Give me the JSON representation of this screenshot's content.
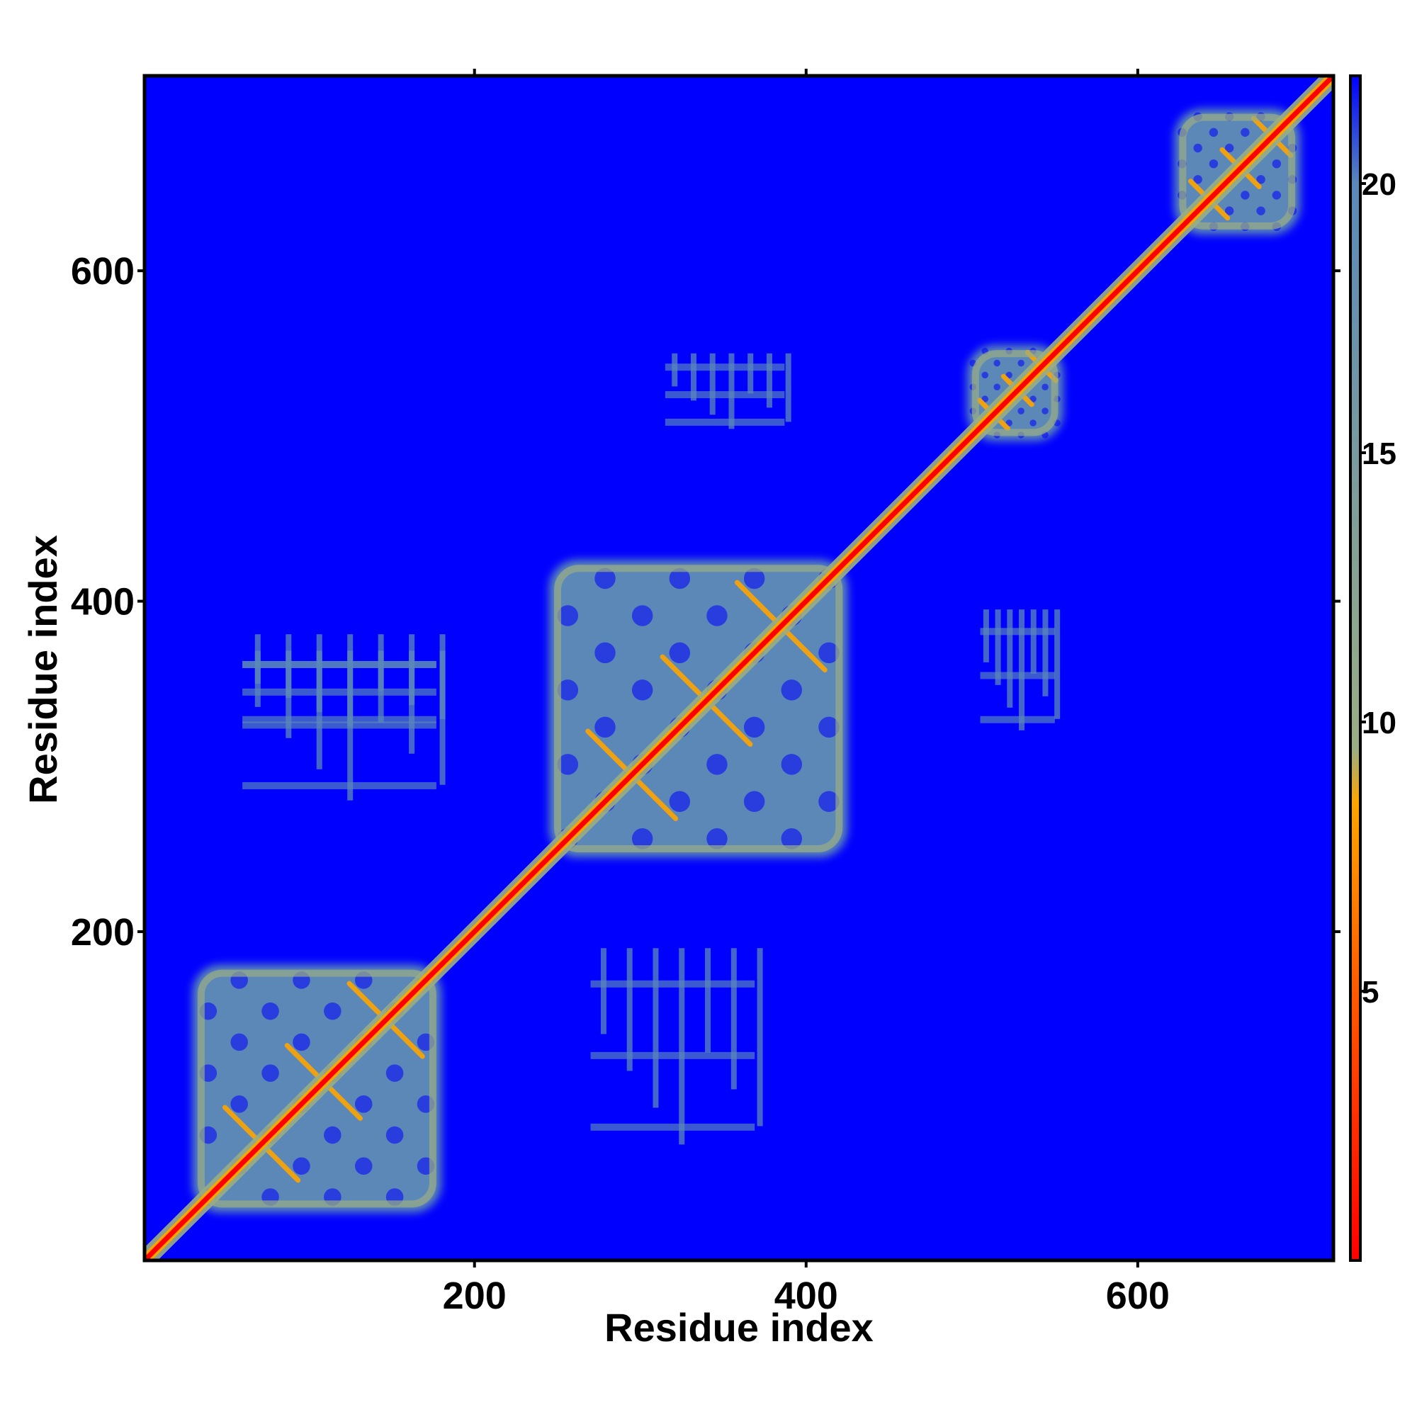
{
  "chart_data": {
    "type": "heatmap",
    "title": "",
    "xlabel": "Residue index",
    "ylabel": "Residue index",
    "xlim": [
      1,
      718
    ],
    "ylim": [
      1,
      718
    ],
    "x_ticks": [
      200,
      400,
      600
    ],
    "y_ticks": [
      200,
      400,
      600
    ],
    "colorbar": {
      "range": [
        0,
        22
      ],
      "ticks": [
        5,
        10,
        15,
        20
      ],
      "stops": [
        {
          "value": 0,
          "color": "#ff0000"
        },
        {
          "value": 5,
          "color": "#ff5a00"
        },
        {
          "value": 8.5,
          "color": "#ffa500"
        },
        {
          "value": 9.5,
          "color": "#9aae84"
        },
        {
          "value": 20,
          "color": "#5b88b8"
        },
        {
          "value": 22,
          "color": "#0000ff"
        }
      ]
    },
    "background_color": "#0000ff",
    "diagonal_band_color": "#ff0000",
    "domains": [
      {
        "start": 30,
        "end": 180
      },
      {
        "start": 245,
        "end": 425
      },
      {
        "start": 497,
        "end": 555
      },
      {
        "start": 622,
        "end": 698
      }
    ],
    "inter_domain_contacts": [
      {
        "x": [
          270,
          380
        ],
        "y": [
          60,
          190
        ]
      },
      {
        "x": [
          60,
          190
        ],
        "y": [
          270,
          380
        ]
      },
      {
        "x": [
          60,
          190
        ],
        "y": [
          320,
          370
        ]
      },
      {
        "x": [
          315,
          395
        ],
        "y": [
          500,
          550
        ]
      },
      {
        "x": [
          505,
          555
        ],
        "y": [
          315,
          395
        ]
      }
    ],
    "grid": false,
    "legend": "colorbar-right"
  }
}
